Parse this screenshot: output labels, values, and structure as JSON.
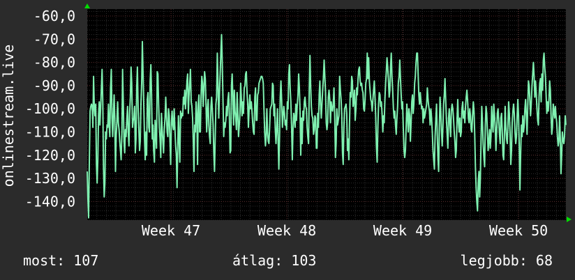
{
  "colors": {
    "background": "#2b2b2b",
    "plot_background": "#000000",
    "line": "#7ff0b0",
    "grid_major": "#5a2a2a",
    "grid_minor": "#2e2e2e",
    "axis_arrow": "#00dd00"
  },
  "chart_data": {
    "type": "line",
    "title": "",
    "xlabel": "",
    "ylabel": "onlinestream.live",
    "ylim": [
      -148,
      -57
    ],
    "y_ticks": [
      "-60,0",
      "-70,0",
      "-80,0",
      "-90,0",
      "-100,0",
      "-110,0",
      "-120,0",
      "-130,0",
      "-140,0"
    ],
    "y_tick_values": [
      -60,
      -70,
      -80,
      -90,
      -100,
      -110,
      -120,
      -130,
      -140
    ],
    "xlim": [
      0,
      100
    ],
    "x_ticks": [
      "Week 47",
      "Week 48",
      "Week 49",
      "Week 50"
    ],
    "x_tick_values": [
      17.5,
      41.7,
      65.9,
      90.1
    ],
    "grid": true,
    "series": [
      {
        "values": [
          -127,
          -139,
          -147,
          -123,
          -101,
          -99,
          -98,
          -99,
          -108,
          -86,
          -99,
          -103,
          -98,
          -124,
          -132,
          -122,
          -103,
          -97,
          -107,
          -99,
          -91,
          -83,
          -97,
          -125,
          -138,
          -132,
          -110,
          -113,
          -107,
          -108,
          -98,
          -107,
          -112,
          -91,
          -83,
          -104,
          -112,
          -103,
          -94,
          -104,
          -127,
          -112,
          -105,
          -97,
          -106,
          -109,
          -114,
          -118,
          -122,
          -110,
          -83,
          -97,
          -114,
          -119,
          -109,
          -112,
          -105,
          -99,
          -110,
          -116,
          -102,
          -95,
          -82,
          -89,
          -108,
          -105,
          -104,
          -99,
          -119,
          -113,
          -91,
          -82,
          -100,
          -109,
          -118,
          -114,
          -98,
          -89,
          -71,
          -86,
          -99,
          -113,
          -122,
          -110,
          -120,
          -96,
          -93,
          -108,
          -110,
          -88,
          -81,
          -94,
          -113,
          -107,
          -118,
          -123,
          -105,
          -110,
          -117,
          -84,
          -85,
          -98,
          -108,
          -113,
          -121,
          -102,
          -109,
          -114,
          -119,
          -109,
          -104,
          -95,
          -103,
          -110,
          -112,
          -100,
          -103,
          -114,
          -124,
          -106,
          -101,
          -107,
          -109,
          -100,
          -108,
          -116,
          -120,
          -134,
          -117,
          -103,
          -113,
          -123,
          -101,
          -104,
          -102,
          -103,
          -95,
          -98,
          -92,
          -100,
          -94,
          -88,
          -85,
          -102,
          -94,
          -89,
          -83,
          -97,
          -99,
          -104,
          -114,
          -127,
          -107,
          -110,
          -97,
          -103,
          -124,
          -98,
          -94,
          -110,
          -110,
          -95,
          -86,
          -89,
          -99,
          -91,
          -84,
          -87,
          -98,
          -110,
          -100,
          -96,
          -107,
          -112,
          -115,
          -99,
          -95,
          -101,
          -107,
          -119,
          -127,
          -113,
          -98,
          -95,
          -76,
          -90,
          -104,
          -93,
          -85,
          -76,
          -68,
          -80,
          -97,
          -112,
          -106,
          -108,
          -105,
          -99,
          -103,
          -96,
          -93,
          -103,
          -119,
          -118,
          -90,
          -85,
          -95,
          -107,
          -92,
          -101,
          -104,
          -109,
          -93,
          -101,
          -112,
          -107,
          -102,
          -89,
          -96,
          -103,
          -97,
          -102,
          -91,
          -90,
          -85,
          -84,
          -93,
          -98,
          -108,
          -100,
          -94,
          -100,
          -97,
          -101,
          -106,
          -110,
          -111,
          -95,
          -91,
          -105,
          -105,
          -94,
          -93,
          -89,
          -88,
          -87,
          -86,
          -86,
          -87,
          -89,
          -100,
          -110,
          -116,
          -112,
          -100,
          -110,
          -114,
          -115,
          -108,
          -100,
          -99,
          -98,
          -89,
          -90,
          -103,
          -98,
          -109,
          -115,
          -108,
          -100,
          -114,
          -126,
          -112,
          -95,
          -88,
          -97,
          -108,
          -103,
          -99,
          -102,
          -107,
          -105,
          -109,
          -97,
          -100,
          -85,
          -81,
          -91,
          -97,
          -107,
          -122,
          -109,
          -102,
          -104,
          -108,
          -98,
          -105,
          -99,
          -94,
          -85,
          -91,
          -101,
          -120,
          -104,
          -115,
          -101,
          -105,
          -97,
          -95,
          -99,
          -100,
          -108,
          -112,
          -115,
          -91,
          -77,
          -90,
          -99,
          -103,
          -104,
          -111,
          -109,
          -103,
          -104,
          -117,
          -117,
          -102,
          -108,
          -94,
          -88,
          -98,
          -104,
          -98,
          -92,
          -87,
          -79,
          -86,
          -93,
          -106,
          -109,
          -106,
          -95,
          -92,
          -96,
          -106,
          -97,
          -100,
          -101,
          -98,
          -91,
          -104,
          -121,
          -115,
          -100,
          -107,
          -105,
          -103,
          -86,
          -92,
          -96,
          -103,
          -119,
          -124,
          -108,
          -100,
          -99,
          -98,
          -102,
          -118,
          -113,
          -122,
          -106,
          -93,
          -95,
          -86,
          -88,
          -99,
          -96,
          -92,
          -105,
          -100,
          -91,
          -94,
          -87,
          -83,
          -82,
          -88,
          -90,
          -89,
          -92,
          -93,
          -100,
          -101,
          -96,
          -89,
          -87,
          -76,
          -87,
          -78,
          -88,
          -92,
          -96,
          -97,
          -101,
          -96,
          -92,
          -88,
          -95,
          -103,
          -116,
          -123,
          -108,
          -98,
          -93,
          -94,
          -99,
          -97,
          -102,
          -110,
          -103,
          -106,
          -96,
          -89,
          -84,
          -78,
          -82,
          -88,
          -95,
          -92,
          -82,
          -76,
          -86,
          -92,
          -100,
          -104,
          -101,
          -107,
          -111,
          -104,
          -99,
          -89,
          -86,
          -79,
          -87,
          -94,
          -100,
          -97,
          -108,
          -118,
          -121,
          -118,
          -108,
          -98,
          -103,
          -110,
          -100,
          -103,
          -114,
          -106,
          -97,
          -94,
          -102,
          -98,
          -89,
          -86,
          -80,
          -76,
          -76,
          -85,
          -94,
          -98,
          -93,
          -97,
          -100,
          -99,
          -106,
          -100,
          -104,
          -102,
          -100,
          -98,
          -91,
          -96,
          -99,
          -101,
          -107,
          -100,
          -104,
          -110,
          -118,
          -122,
          -126,
          -112,
          -104,
          -98,
          -111,
          -121,
          -127,
          -108,
          -95,
          -101,
          -110,
          -116,
          -108,
          -98,
          -94,
          -87,
          -96,
          -105,
          -111,
          -117,
          -104,
          -100,
          -107,
          -112,
          -101,
          -98,
          -100,
          -104,
          -110,
          -114,
          -121,
          -118,
          -104,
          -96,
          -106,
          -110,
          -104,
          -112,
          -110,
          -100,
          -97,
          -104,
          -101,
          -106,
          -99,
          -95,
          -92,
          -97,
          -104,
          -106,
          -100,
          -103,
          -109,
          -110,
          -103,
          -97,
          -101,
          -111,
          -125,
          -134,
          -140,
          -144,
          -131,
          -127,
          -138,
          -130,
          -113,
          -99,
          -106,
          -115,
          -121,
          -125,
          -107,
          -99,
          -102,
          -110,
          -118,
          -114,
          -109,
          -117,
          -112,
          -99,
          -106,
          -110,
          -98,
          -103,
          -108,
          -118,
          -110,
          -102,
          -100,
          -105,
          -111,
          -115,
          -104,
          -102,
          -110,
          -120,
          -122,
          -112,
          -99,
          -108,
          -113,
          -115,
          -107,
          -97,
          -102,
          -110,
          -124,
          -118,
          -106,
          -101,
          -98,
          -102,
          -110,
          -115,
          -112,
          -103,
          -96,
          -103,
          -116,
          -135,
          -120,
          -107,
          -112,
          -103,
          -110,
          -107,
          -100,
          -96,
          -103,
          -111,
          -99,
          -88,
          -90,
          -96,
          -103,
          -98,
          -90,
          -85,
          -80,
          -86,
          -95,
          -88,
          -93,
          -100,
          -105,
          -107,
          -95,
          -89,
          -87,
          -97,
          -85,
          -92,
          -79,
          -76,
          -82,
          -86,
          -94,
          -102,
          -97,
          -101,
          -96,
          -88,
          -92,
          -103,
          -111,
          -108,
          -98,
          -101,
          -104,
          -99,
          -103,
          -106,
          -112,
          -116,
          -114,
          -103,
          -112,
          -128,
          -120,
          -110,
          -113,
          -115,
          -112,
          -103,
          -107
        ]
      }
    ]
  },
  "footer": {
    "current": "most: 107",
    "average": "átlag: 103",
    "best": "legjobb: 68"
  }
}
